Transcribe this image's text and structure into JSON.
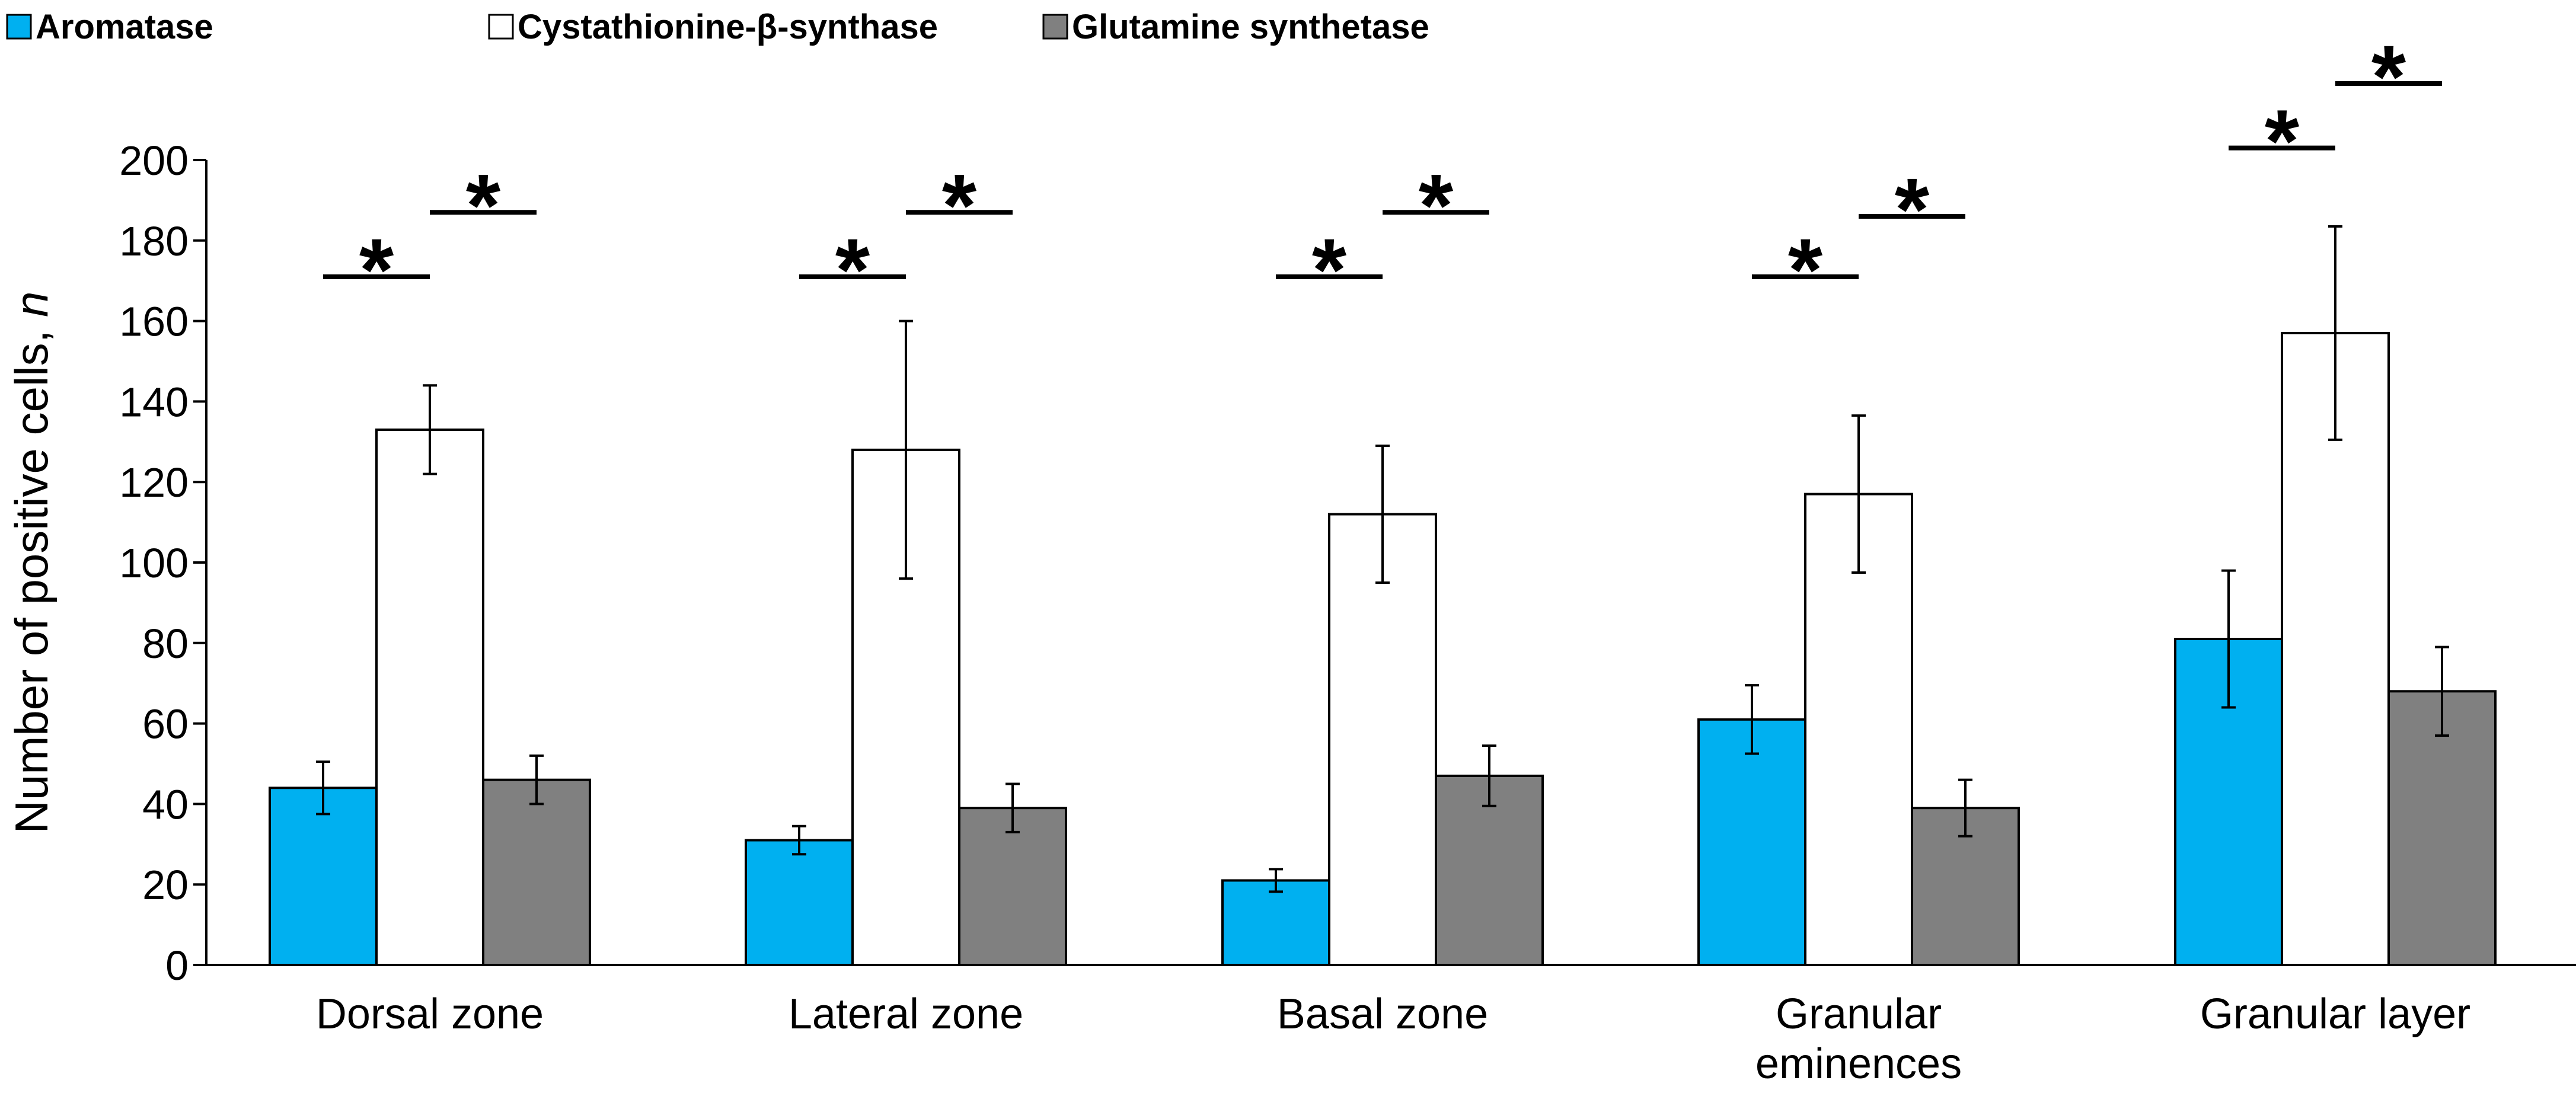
{
  "chart_data": {
    "type": "bar",
    "title": "",
    "xlabel": "",
    "ylabel": {
      "main": "Number of positive cells, ",
      "italic": "n"
    },
    "ylim": [
      0,
      200
    ],
    "yticks": [
      0,
      20,
      40,
      60,
      80,
      100,
      120,
      140,
      160,
      180,
      200
    ],
    "legend_position": "top-left",
    "categories": [
      [
        "Dorsal zone"
      ],
      [
        "Lateral zone"
      ],
      [
        "Basal zone"
      ],
      [
        "Granular",
        "eminences"
      ],
      [
        "Granular layer"
      ]
    ],
    "series": [
      {
        "name": "Aromatase",
        "color": "#00b0f0",
        "values": [
          44,
          31,
          21,
          61,
          81
        ],
        "errors": [
          6.5,
          3.5,
          2.8,
          8.5,
          17
        ]
      },
      {
        "name": "Cystathionine-β-synthase",
        "color": "#ffffff",
        "values": [
          133,
          128,
          112,
          117,
          157
        ],
        "errors": [
          11,
          32,
          17,
          19.5,
          26.5
        ]
      },
      {
        "name": "Glutamine synthetase",
        "color": "#808080",
        "values": [
          46,
          39,
          47,
          39,
          68
        ],
        "errors": [
          6,
          6,
          7.5,
          7,
          11
        ]
      }
    ],
    "significance": [
      {
        "category": 0,
        "from_series": 0,
        "to_series": 1,
        "level": 171,
        "label": "*"
      },
      {
        "category": 0,
        "from_series": 1,
        "to_series": 2,
        "level": 187,
        "label": "*"
      },
      {
        "category": 1,
        "from_series": 0,
        "to_series": 1,
        "level": 171,
        "label": "*"
      },
      {
        "category": 1,
        "from_series": 1,
        "to_series": 2,
        "level": 187,
        "label": "*"
      },
      {
        "category": 2,
        "from_series": 0,
        "to_series": 1,
        "level": 171,
        "label": "*"
      },
      {
        "category": 2,
        "from_series": 1,
        "to_series": 2,
        "level": 187,
        "label": "*"
      },
      {
        "category": 3,
        "from_series": 0,
        "to_series": 1,
        "level": 171,
        "label": "*"
      },
      {
        "category": 3,
        "from_series": 1,
        "to_series": 2,
        "level": 186,
        "label": "*"
      },
      {
        "category": 4,
        "from_series": 0,
        "to_series": 1,
        "level": 203,
        "label": "*"
      },
      {
        "category": 4,
        "from_series": 1,
        "to_series": 2,
        "level": 219,
        "label": "*"
      }
    ]
  }
}
